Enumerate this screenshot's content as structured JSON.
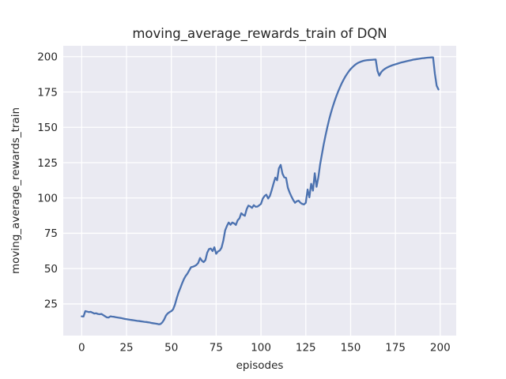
{
  "figure": {
    "background": "#ffffff"
  },
  "chart_data": {
    "type": "line",
    "title": "moving_average_rewards_train of DQN",
    "xlabel": "episodes",
    "ylabel": "moving_average_rewards_train",
    "x_ticks": [
      0,
      25,
      50,
      75,
      100,
      125,
      150,
      175,
      200
    ],
    "y_ticks": [
      25,
      50,
      75,
      100,
      125,
      150,
      175,
      200
    ],
    "xlim": [
      -10.3,
      208.9
    ],
    "ylim": [
      2.6,
      207.7
    ],
    "grid": true,
    "legend": "none",
    "style": {
      "line_color": "#4c72b0",
      "line_width": 2.3,
      "plot_bg": "#eaeaf2",
      "grid_color": "#ffffff",
      "grid_width": 1.3,
      "text_color": "#262626"
    },
    "series": [
      {
        "name": "DQN",
        "x": [
          0,
          1,
          2,
          3,
          4,
          5,
          6,
          7,
          8,
          9,
          10,
          11,
          12,
          13,
          14,
          15,
          16,
          17,
          18,
          19,
          20,
          21,
          22,
          23,
          24,
          25,
          26,
          27,
          28,
          29,
          30,
          31,
          32,
          33,
          34,
          35,
          36,
          37,
          38,
          39,
          40,
          41,
          42,
          43,
          44,
          45,
          46,
          47,
          48,
          49,
          50,
          51,
          52,
          53,
          54,
          55,
          56,
          57,
          58,
          59,
          60,
          61,
          62,
          63,
          64,
          65,
          66,
          67,
          68,
          69,
          70,
          71,
          72,
          73,
          74,
          75,
          76,
          77,
          78,
          79,
          80,
          81,
          82,
          83,
          84,
          85,
          86,
          87,
          88,
          89,
          90,
          91,
          92,
          93,
          94,
          95,
          96,
          97,
          98,
          99,
          100,
          101,
          102,
          103,
          104,
          105,
          106,
          107,
          108,
          109,
          110,
          111,
          112,
          113,
          114,
          115,
          116,
          117,
          118,
          119,
          120,
          121,
          122,
          123,
          124,
          125,
          126,
          127,
          128,
          129,
          130,
          131,
          132,
          133,
          134,
          135,
          136,
          137,
          138,
          139,
          140,
          141,
          142,
          143,
          144,
          145,
          146,
          147,
          148,
          149,
          150,
          151,
          152,
          153,
          154,
          155,
          156,
          157,
          158,
          159,
          160,
          161,
          162,
          163,
          164,
          165,
          166,
          167,
          168,
          169,
          170,
          171,
          172,
          173,
          174,
          175,
          176,
          177,
          178,
          179,
          180,
          181,
          182,
          183,
          184,
          185,
          186,
          187,
          188,
          189,
          190,
          191,
          192,
          193,
          194,
          195,
          196,
          197,
          198,
          199
        ],
        "y": [
          16.2,
          16.1,
          19.9,
          19.6,
          19.2,
          19.4,
          18.8,
          18.2,
          18.4,
          17.9,
          17.7,
          17.9,
          17.1,
          16.3,
          15.5,
          15.4,
          16.2,
          16.0,
          15.9,
          15.6,
          15.4,
          15.2,
          15.0,
          14.7,
          14.4,
          14.2,
          14.0,
          13.8,
          13.6,
          13.4,
          13.2,
          13.0,
          12.9,
          12.7,
          12.5,
          12.3,
          12.2,
          12.0,
          11.8,
          11.5,
          11.3,
          11.1,
          10.9,
          10.6,
          10.8,
          12.0,
          14.0,
          16.8,
          18.3,
          19.2,
          19.9,
          21.2,
          24.5,
          29.0,
          33.0,
          36.2,
          39.5,
          42.5,
          44.8,
          46.5,
          48.8,
          51.0,
          51.3,
          51.8,
          52.6,
          54.0,
          57.5,
          55.6,
          54.6,
          56.0,
          61.2,
          63.8,
          64.2,
          62.4,
          65.1,
          60.5,
          62.1,
          62.8,
          64.8,
          69.8,
          77.0,
          80.2,
          82.6,
          81.0,
          82.6,
          82.0,
          80.9,
          84.2,
          85.6,
          89.2,
          88.1,
          87.4,
          92.0,
          94.6,
          94.0,
          93.0,
          94.9,
          93.8,
          93.9,
          94.8,
          95.8,
          99.5,
          101.4,
          102.3,
          99.6,
          101.5,
          105.6,
          110.2,
          114.4,
          112.5,
          121.0,
          123.4,
          117.2,
          114.6,
          114.2,
          107.2,
          103.8,
          101.0,
          98.5,
          96.6,
          97.7,
          98.1,
          96.6,
          95.8,
          95.4,
          96.6,
          106.0,
          100.4,
          110.0,
          105.2,
          117.5,
          107.9,
          114.5,
          123.8,
          131.0,
          138.0,
          144.2,
          150.0,
          155.4,
          160.1,
          164.4,
          168.3,
          171.9,
          175.2,
          178.2,
          181.0,
          183.5,
          185.8,
          187.8,
          189.6,
          191.2,
          192.5,
          193.7,
          194.7,
          195.5,
          196.1,
          196.6,
          197.0,
          197.3,
          197.5,
          197.6,
          197.7,
          197.8,
          197.9,
          198.0,
          190.0,
          186.6,
          188.9,
          190.3,
          191.3,
          192.1,
          192.7,
          193.3,
          193.8,
          194.2,
          194.6,
          195.0,
          195.4,
          195.8,
          196.1,
          196.4,
          196.7,
          197.0,
          197.3,
          197.6,
          197.9,
          198.1,
          198.3,
          198.5,
          198.7,
          198.9,
          199.0,
          199.2,
          199.3,
          199.4,
          199.5,
          199.5,
          188.0,
          179.5,
          176.8
        ]
      }
    ]
  }
}
